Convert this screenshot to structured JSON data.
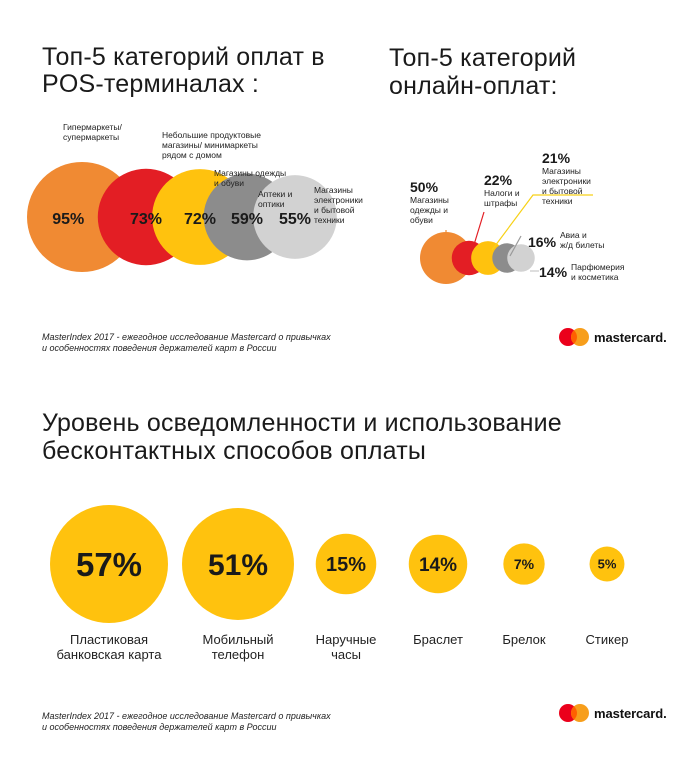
{
  "pos": {
    "title_line1": "Топ-5 категорий оплат в",
    "title_line2": "POS-терминалах :"
  },
  "online": {
    "title_line1": "Топ-5 категорий",
    "title_line2": "онлайн-оплат:"
  },
  "awareness": {
    "title_line1": "Уровень осведомленности и использование",
    "title_line2": "бесконтактных способов оплаты"
  },
  "source_note": {
    "line1": "MasterIndex 2017 - ежегодное исследование Mastercard о привычках",
    "line2": "и особенностях поведения держателей карт в России"
  },
  "brand": "mastercard.",
  "colors": {
    "orange": "#F08A33",
    "red": "#E31E24",
    "yellow": "#FFC20E",
    "dark_gray": "#8C8C8C",
    "light_gray": "#D2D2D2",
    "accent_yellow": "#F7D117"
  },
  "chart_data": [
    {
      "type": "bubble",
      "title": "Топ-5 категорий оплат в POS-терминалах :",
      "categories": [
        "Гипермаркеты/ супермаркеты",
        "Небольшие продуктовые магазины/ минимаркеты рядом с домом",
        "Магазины одежды и обуви",
        "Аптеки и оптики",
        "Магазины электроники и бытовой техники"
      ],
      "values": [
        95,
        73,
        72,
        59,
        55
      ],
      "labels": [
        "95%",
        "73%",
        "72%",
        "59%",
        "55%"
      ],
      "label_lines": [
        [
          "Гипермаркеты/",
          "супермаркеты"
        ],
        [
          "Небольшие продуктовые",
          "магазины/ минимаркеты",
          "рядом с домом"
        ],
        [
          "Магазины одежды",
          "и обуви"
        ],
        [
          "Аптеки и",
          "оптики"
        ],
        [
          "Магазины",
          "электроники",
          "и бытовой",
          "техники"
        ]
      ]
    },
    {
      "type": "bubble",
      "title": "Топ-5 категорий онлайн-оплат:",
      "categories": [
        "Магазины одежды и обуви",
        "Налоги и штрафы",
        "Магазины электроники и бытовой техники",
        "Авиа и ж/д билеты",
        "Парфюмерия и косметика"
      ],
      "values": [
        50,
        22,
        21,
        16,
        14
      ],
      "labels": [
        "50%",
        "22%",
        "21%",
        "16%",
        "14%"
      ],
      "label_lines": [
        [
          "Магазины",
          "одежды и",
          "обуви"
        ],
        [
          "Налоги и",
          "штрафы"
        ],
        [
          "Магазины",
          "электроники",
          "и бытовой",
          "техники"
        ],
        [
          "Авиа и",
          "ж/д билеты"
        ],
        [
          "Парфюмерия",
          "и косметика"
        ]
      ]
    },
    {
      "type": "bubble",
      "title": "Уровень осведомленности и использование бесконтактных способов оплаты",
      "categories": [
        "Пластиковая банковская карта",
        "Мобильный телефон",
        "Наручные часы",
        "Браслет",
        "Брелок",
        "Стикер"
      ],
      "values": [
        57,
        51,
        15,
        14,
        7,
        5
      ],
      "labels": [
        "57%",
        "51%",
        "15%",
        "14%",
        "7%",
        "5%"
      ],
      "label_lines": [
        [
          "Пластиковая",
          "банковская карта"
        ],
        [
          "Мобильный",
          "телефон"
        ],
        [
          "Наручные",
          "часы"
        ],
        [
          "Браслет"
        ],
        [
          "Брелок"
        ],
        [
          "Стикер"
        ]
      ]
    }
  ]
}
